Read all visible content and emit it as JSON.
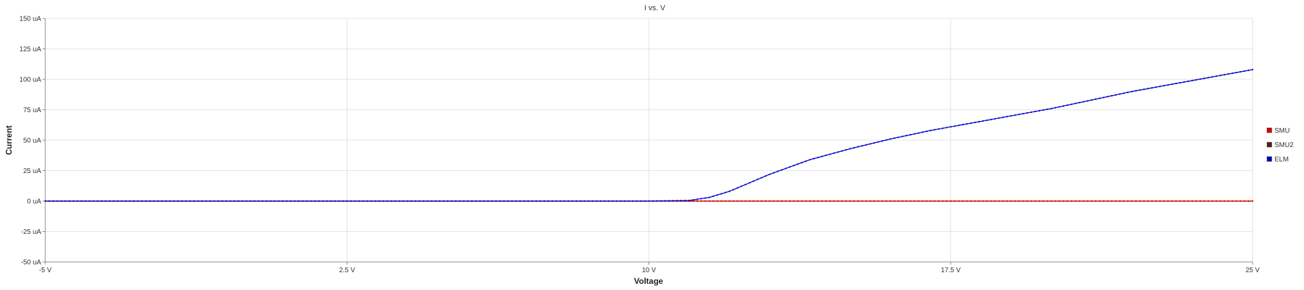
{
  "chart_data": {
    "type": "line",
    "title": "I vs. V",
    "xlabel": "Voltage",
    "ylabel": "Current",
    "xlim": [
      -5,
      25
    ],
    "ylim": [
      -50,
      150
    ],
    "x_ticks": [
      -5,
      2.5,
      10,
      17.5,
      25
    ],
    "x_tick_labels": [
      "-5 V",
      "2.5 V",
      "10 V",
      "17.5 V",
      "25 V"
    ],
    "y_ticks": [
      150,
      125,
      100,
      75,
      50,
      25,
      0,
      -25,
      -50
    ],
    "y_tick_labels": [
      "150 uA",
      "125 uA",
      "100 uA",
      "75 uA",
      "50 uA",
      "25 uA",
      "0 uA",
      "-25 uA",
      "-50 uA"
    ],
    "grid": true,
    "legend_position": "right",
    "series": [
      {
        "name": "SMU",
        "color": "#dd0000",
        "x": [
          -5,
          0,
          5,
          10,
          15,
          20,
          25
        ],
        "y": [
          0,
          0,
          0,
          0,
          0,
          0,
          0
        ]
      },
      {
        "name": "SMU2",
        "color": "#5a1e0a",
        "x": [
          -5,
          0,
          5,
          10,
          15,
          20,
          25
        ],
        "y": [
          0,
          0,
          0,
          0,
          0,
          0,
          0
        ]
      },
      {
        "name": "ELM",
        "color": "#0000cc",
        "x": [
          -5,
          0,
          5,
          10,
          11,
          11.5,
          12,
          12.5,
          13,
          13.5,
          14,
          15,
          16,
          17,
          18,
          19,
          20,
          21,
          22,
          23,
          24,
          25
        ],
        "y": [
          0,
          0,
          0,
          0,
          0.5,
          3,
          8,
          15,
          22,
          28,
          34,
          43,
          51,
          58,
          64,
          70,
          76,
          83,
          90,
          96,
          102,
          108
        ]
      }
    ]
  }
}
